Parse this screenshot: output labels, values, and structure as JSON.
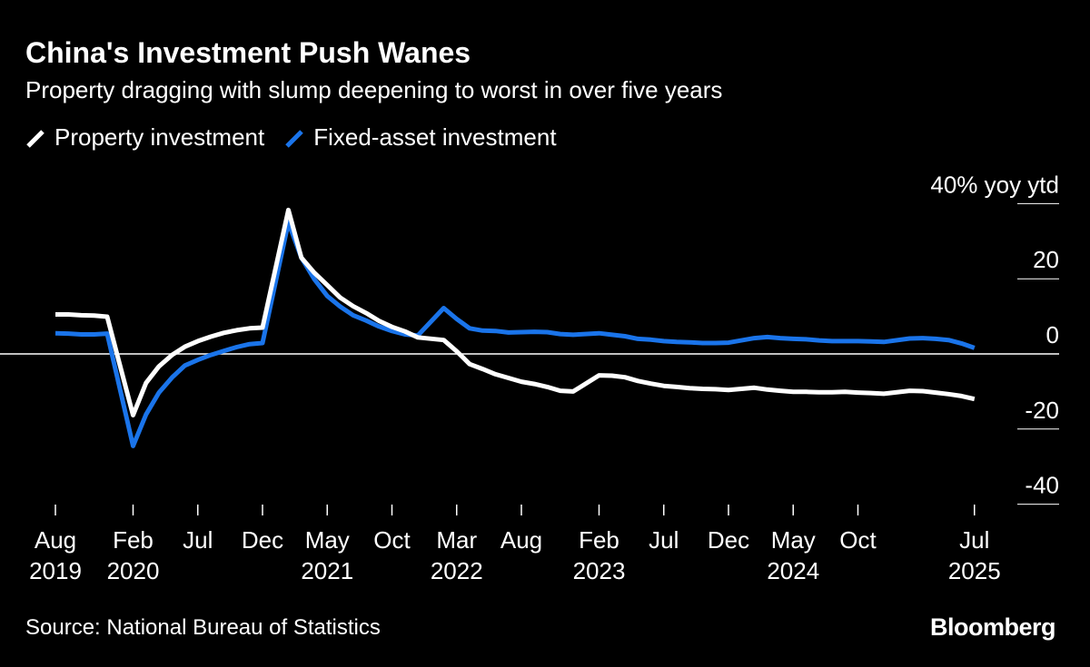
{
  "title": "China's Investment Push Wanes",
  "subtitle": "Property dragging with slump deepening to worst in over five years",
  "source": "Source: National Bureau of Statistics",
  "logo": "Bloomberg",
  "chart_data": {
    "type": "line",
    "title": "China's Investment Push Wanes",
    "ylabel": "40% yoy ytd",
    "ylim": [
      -40,
      40
    ],
    "y_ticks": [
      {
        "v": 40,
        "label": "40% yoy ytd"
      },
      {
        "v": 20,
        "label": "20"
      },
      {
        "v": 0,
        "label": "0"
      },
      {
        "v": -20,
        "label": "-20"
      },
      {
        "v": -40,
        "label": "-40"
      }
    ],
    "x_ticks": [
      {
        "d": "2019-08",
        "m": "Aug",
        "y": "2019"
      },
      {
        "d": "2020-02",
        "m": "Feb",
        "y": "2020"
      },
      {
        "d": "2020-07",
        "m": "Jul",
        "y": ""
      },
      {
        "d": "2020-12",
        "m": "Dec",
        "y": ""
      },
      {
        "d": "2021-05",
        "m": "May",
        "y": "2021"
      },
      {
        "d": "2021-10",
        "m": "Oct",
        "y": ""
      },
      {
        "d": "2022-03",
        "m": "Mar",
        "y": "2022"
      },
      {
        "d": "2022-08",
        "m": "Aug",
        "y": ""
      },
      {
        "d": "2023-02",
        "m": "Feb",
        "y": "2023"
      },
      {
        "d": "2023-07",
        "m": "Jul",
        "y": ""
      },
      {
        "d": "2023-12",
        "m": "Dec",
        "y": ""
      },
      {
        "d": "2024-05",
        "m": "May",
        "y": "2024"
      },
      {
        "d": "2024-10",
        "m": "Oct",
        "y": ""
      },
      {
        "d": "2025-07",
        "m": "Jul",
        "y": "2025"
      }
    ],
    "legend_position": "top-left",
    "grid": false,
    "dates": [
      "2019-08",
      "2019-09",
      "2019-10",
      "2019-11",
      "2019-12",
      "2020-02",
      "2020-03",
      "2020-04",
      "2020-05",
      "2020-06",
      "2020-07",
      "2020-08",
      "2020-09",
      "2020-10",
      "2020-11",
      "2020-12",
      "2021-02",
      "2021-03",
      "2021-04",
      "2021-05",
      "2021-06",
      "2021-07",
      "2021-08",
      "2021-09",
      "2021-10",
      "2021-11",
      "2021-12",
      "2022-02",
      "2022-03",
      "2022-04",
      "2022-05",
      "2022-06",
      "2022-07",
      "2022-08",
      "2022-09",
      "2022-10",
      "2022-11",
      "2022-12",
      "2023-02",
      "2023-03",
      "2023-04",
      "2023-05",
      "2023-06",
      "2023-07",
      "2023-08",
      "2023-09",
      "2023-10",
      "2023-11",
      "2023-12",
      "2024-02",
      "2024-03",
      "2024-04",
      "2024-05",
      "2024-06",
      "2024-07",
      "2024-08",
      "2024-09",
      "2024-10",
      "2024-11",
      "2024-12",
      "2025-02",
      "2025-03",
      "2025-04",
      "2025-05",
      "2025-06",
      "2025-07"
    ],
    "series": [
      {
        "name": "Property investment",
        "color": "#ffffff",
        "values": [
          10.5,
          10.5,
          10.3,
          10.2,
          9.9,
          -16.3,
          -7.7,
          -3.3,
          -0.3,
          1.9,
          3.4,
          4.6,
          5.6,
          6.3,
          6.8,
          7.0,
          38.3,
          25.6,
          21.6,
          18.3,
          15.0,
          12.7,
          10.9,
          8.8,
          7.2,
          6.0,
          4.4,
          3.7,
          0.7,
          -2.7,
          -4.0,
          -5.4,
          -6.4,
          -7.4,
          -8.0,
          -8.8,
          -9.8,
          -10.0,
          -5.7,
          -5.8,
          -6.2,
          -7.2,
          -7.9,
          -8.5,
          -8.8,
          -9.1,
          -9.3,
          -9.4,
          -9.6,
          -9.0,
          -9.5,
          -9.8,
          -10.1,
          -10.1,
          -10.2,
          -10.2,
          -10.1,
          -10.3,
          -10.4,
          -10.6,
          -9.8,
          -9.9,
          -10.3,
          -10.7,
          -11.2,
          -12.0
        ]
      },
      {
        "name": "Fixed-asset investment",
        "color": "#1a74ea",
        "values": [
          5.5,
          5.4,
          5.2,
          5.2,
          5.4,
          -24.5,
          -16.1,
          -10.3,
          -6.3,
          -3.1,
          -1.6,
          -0.3,
          0.8,
          1.8,
          2.6,
          2.9,
          35.0,
          25.6,
          19.9,
          15.4,
          12.6,
          10.3,
          8.9,
          7.3,
          6.1,
          5.2,
          4.9,
          12.2,
          9.3,
          6.8,
          6.2,
          6.1,
          5.7,
          5.8,
          5.9,
          5.8,
          5.3,
          5.1,
          5.5,
          5.1,
          4.7,
          4.0,
          3.8,
          3.4,
          3.2,
          3.1,
          2.9,
          2.9,
          3.0,
          4.2,
          4.5,
          4.2,
          4.0,
          3.9,
          3.6,
          3.4,
          3.4,
          3.4,
          3.3,
          3.2,
          4.1,
          4.2,
          4.0,
          3.7,
          2.8,
          1.6
        ]
      }
    ]
  }
}
